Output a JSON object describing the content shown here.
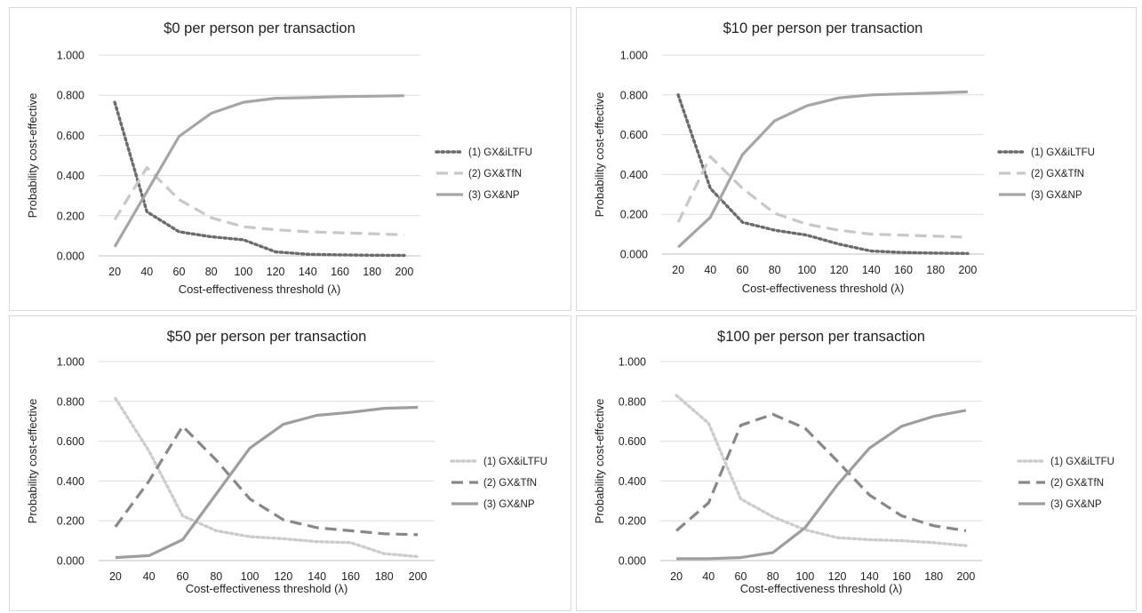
{
  "chart_data": [
    {
      "type": "line",
      "title": "$0 per person per transaction",
      "xlabel": "Cost-effectiveness threshold  (λ)",
      "ylabel": "Probability cost-effective",
      "x": [
        20,
        40,
        60,
        80,
        100,
        120,
        140,
        160,
        180,
        200
      ],
      "x_tick_labels": [
        "20",
        "40",
        "60",
        "80",
        "100",
        "120",
        "140",
        "160",
        "180",
        "200"
      ],
      "y_tick_labels": [
        "0.000",
        "0.200",
        "0.400",
        "0.600",
        "0.800",
        "1.000"
      ],
      "ylim": [
        0,
        1
      ],
      "grid": "horizontal",
      "legend_position": "right",
      "series": [
        {
          "name": "(1) GX&iLTFU",
          "style": "dotted",
          "color": "#6b6b6b",
          "values": [
            0.765,
            0.22,
            0.12,
            0.095,
            0.08,
            0.02,
            0.008,
            0.005,
            0.003,
            0.002
          ]
        },
        {
          "name": "(2) GX&TfN",
          "style": "dashed",
          "color": "#c8c8c8",
          "values": [
            0.18,
            0.44,
            0.28,
            0.19,
            0.145,
            0.13,
            0.12,
            0.115,
            0.11,
            0.105
          ]
        },
        {
          "name": "(3) GX&NP",
          "style": "solid",
          "color": "#a6a6a6",
          "values": [
            0.045,
            0.32,
            0.595,
            0.71,
            0.765,
            0.785,
            0.788,
            0.793,
            0.795,
            0.798
          ]
        }
      ]
    },
    {
      "type": "line",
      "title": "$10 per person per transaction",
      "xlabel": "Cost-effectiveness threshold  (λ)",
      "ylabel": "Probability cost-effective",
      "x": [
        20,
        40,
        60,
        80,
        100,
        120,
        140,
        160,
        180,
        200
      ],
      "x_tick_labels": [
        "20",
        "40",
        "60",
        "80",
        "100",
        "120",
        "140",
        "160",
        "180",
        "200"
      ],
      "y_tick_labels": [
        "0.000",
        "0.200",
        "0.400",
        "0.600",
        "0.800",
        "1.000"
      ],
      "ylim": [
        0,
        1
      ],
      "grid": "horizontal",
      "legend_position": "right",
      "series": [
        {
          "name": "(1) GX&iLTFU",
          "style": "dotted",
          "color": "#6b6b6b",
          "values": [
            0.8,
            0.33,
            0.16,
            0.12,
            0.095,
            0.05,
            0.015,
            0.008,
            0.005,
            0.003
          ]
        },
        {
          "name": "(2) GX&TfN",
          "style": "dashed",
          "color": "#c8c8c8",
          "values": [
            0.16,
            0.49,
            0.33,
            0.205,
            0.15,
            0.12,
            0.1,
            0.095,
            0.09,
            0.085
          ]
        },
        {
          "name": "(3) GX&NP",
          "style": "solid",
          "color": "#a6a6a6",
          "values": [
            0.035,
            0.185,
            0.5,
            0.67,
            0.745,
            0.785,
            0.8,
            0.805,
            0.81,
            0.815
          ]
        }
      ]
    },
    {
      "type": "line",
      "title": "$50 per person per transaction",
      "xlabel": "Cost-effectiveness threshold  (λ)",
      "ylabel": "Probability cost-effective",
      "x": [
        20,
        40,
        60,
        80,
        100,
        120,
        140,
        160,
        180,
        200
      ],
      "x_tick_labels": [
        "20",
        "40",
        "60",
        "80",
        "100",
        "120",
        "140",
        "160",
        "180",
        "200"
      ],
      "y_tick_labels": [
        "0.000",
        "0.200",
        "0.400",
        "0.600",
        "0.800",
        "1.000"
      ],
      "ylim": [
        0,
        1
      ],
      "grid": "horizontal",
      "legend_position": "right",
      "series": [
        {
          "name": "(1) GX&iLTFU",
          "style": "dotted",
          "color": "#cccccc",
          "values": [
            0.815,
            0.55,
            0.225,
            0.15,
            0.12,
            0.11,
            0.095,
            0.09,
            0.035,
            0.02
          ]
        },
        {
          "name": "(2) GX&TfN",
          "style": "dashed",
          "color": "#888888",
          "values": [
            0.17,
            0.4,
            0.675,
            0.505,
            0.31,
            0.205,
            0.165,
            0.15,
            0.135,
            0.13
          ]
        },
        {
          "name": "(3) GX&NP",
          "style": "solid",
          "color": "#9e9e9e",
          "values": [
            0.015,
            0.025,
            0.105,
            0.335,
            0.565,
            0.685,
            0.73,
            0.745,
            0.765,
            0.77
          ]
        }
      ]
    },
    {
      "type": "line",
      "title": "$100 per person per transaction",
      "xlabel": "Cost-effectiveness threshold  (λ)",
      "ylabel": "Probability cost-effective",
      "x": [
        20,
        40,
        60,
        80,
        100,
        120,
        140,
        160,
        180,
        200
      ],
      "x_tick_labels": [
        "20",
        "40",
        "60",
        "80",
        "100",
        "120",
        "140",
        "160",
        "180",
        "200"
      ],
      "y_tick_labels": [
        "0.000",
        "0.200",
        "0.400",
        "0.600",
        "0.800",
        "1.000"
      ],
      "ylim": [
        0,
        1
      ],
      "grid": "horizontal",
      "legend_position": "right",
      "series": [
        {
          "name": "(1) GX&iLTFU",
          "style": "dotted",
          "color": "#cccccc",
          "values": [
            0.83,
            0.69,
            0.31,
            0.22,
            0.155,
            0.115,
            0.105,
            0.1,
            0.09,
            0.075
          ]
        },
        {
          "name": "(2) GX&TfN",
          "style": "dashed",
          "color": "#888888",
          "values": [
            0.15,
            0.29,
            0.68,
            0.735,
            0.665,
            0.5,
            0.33,
            0.225,
            0.175,
            0.15
          ]
        },
        {
          "name": "(3) GX&NP",
          "style": "solid",
          "color": "#9e9e9e",
          "values": [
            0.01,
            0.01,
            0.015,
            0.04,
            0.165,
            0.38,
            0.565,
            0.675,
            0.725,
            0.755
          ]
        }
      ]
    }
  ]
}
